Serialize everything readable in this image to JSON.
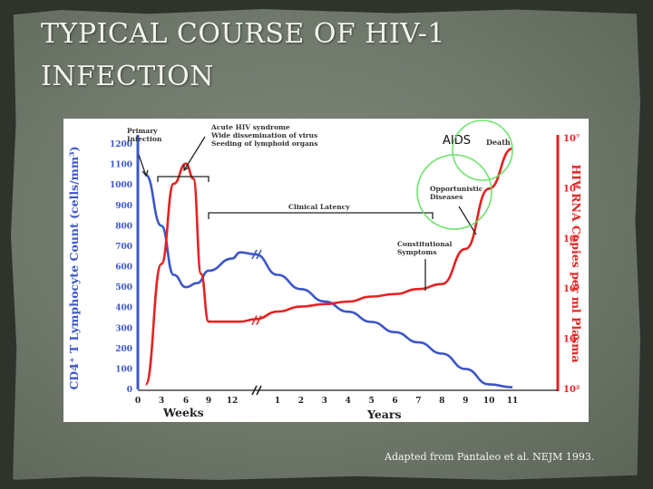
{
  "slide": {
    "title_line1": "TYPICAL COURSE OF HIV-1",
    "title_line2": "INFECTION",
    "caption": "Adapted from Pantaleo et al. NEJM 1993."
  },
  "colors": {
    "cd4": "#3c56c8",
    "rna": "#e52222",
    "annotation": "#333333",
    "highlight_circle": "#5fe05f"
  },
  "chart_data": {
    "type": "line",
    "left_axis": {
      "label": "CD4⁺ T Lymphocyte Count (cells/mm³)",
      "ticks": [
        "0",
        "100",
        "200",
        "300",
        "400",
        "500",
        "600",
        "700",
        "800",
        "900",
        "1000",
        "1100",
        "1200"
      ],
      "range": [
        0,
        1200
      ]
    },
    "right_axis": {
      "label": "HIV RNA Copies per ml Plasma",
      "ticks": [
        "10²",
        "10³",
        "10⁴",
        "10⁵",
        "10⁶",
        "10⁷"
      ],
      "range_log10": [
        2,
        7
      ]
    },
    "x_axis": {
      "weeks_label": "Weeks",
      "weeks_ticks": [
        "0",
        "3",
        "6",
        "9",
        "12"
      ],
      "years_label": "Years",
      "years_ticks": [
        "1",
        "2",
        "3",
        "4",
        "5",
        "6",
        "7",
        "8",
        "9",
        "10",
        "11"
      ]
    },
    "series": [
      {
        "key": "cd4",
        "axis": "left",
        "points": [
          [
            "w1",
            1050
          ],
          [
            "w3",
            800
          ],
          [
            "w4.5",
            560
          ],
          [
            "w6",
            500
          ],
          [
            "w7.5",
            520
          ],
          [
            "w9",
            580
          ],
          [
            "w12",
            640
          ],
          [
            "w13",
            670
          ],
          [
            "y0.2",
            660
          ],
          [
            "y1",
            560
          ],
          [
            "y2",
            490
          ],
          [
            "y3",
            430
          ],
          [
            "y4",
            380
          ],
          [
            "y5",
            330
          ],
          [
            "y6",
            280
          ],
          [
            "y7",
            230
          ],
          [
            "y8",
            175
          ],
          [
            "y9",
            100
          ],
          [
            "y10",
            25
          ],
          [
            "y11",
            10
          ]
        ]
      },
      {
        "key": "rna",
        "axis": "right",
        "points": [
          [
            "w1",
            2.1
          ],
          [
            "w3",
            4.5
          ],
          [
            "w4.5",
            6.1
          ],
          [
            "w6",
            6.5
          ],
          [
            "w7",
            6.2
          ],
          [
            "w8",
            4.3
          ],
          [
            "w9",
            3.35
          ],
          [
            "w12",
            3.35
          ],
          [
            "w13",
            3.35
          ],
          [
            "y0.2",
            3.4
          ],
          [
            "y1",
            3.55
          ],
          [
            "y2",
            3.65
          ],
          [
            "y3",
            3.7
          ],
          [
            "y4",
            3.75
          ],
          [
            "y5",
            3.85
          ],
          [
            "y6",
            3.9
          ],
          [
            "y7",
            4.0
          ],
          [
            "y8",
            4.1
          ],
          [
            "y9",
            4.8
          ],
          [
            "y10",
            6.0
          ],
          [
            "y11",
            6.8
          ]
        ]
      }
    ],
    "annotations": {
      "primary": "Primary\nInfection",
      "acute": "Acute HIV syndrome\nWide dissemination of virus\nSeeding of lymphoid organs",
      "latency": "Clinical Latency",
      "constitutional": "Constitutional\nSymptoms",
      "opportunistic": "Opportunistic\nDiseases",
      "death": "Death",
      "aids": "AIDS"
    }
  }
}
